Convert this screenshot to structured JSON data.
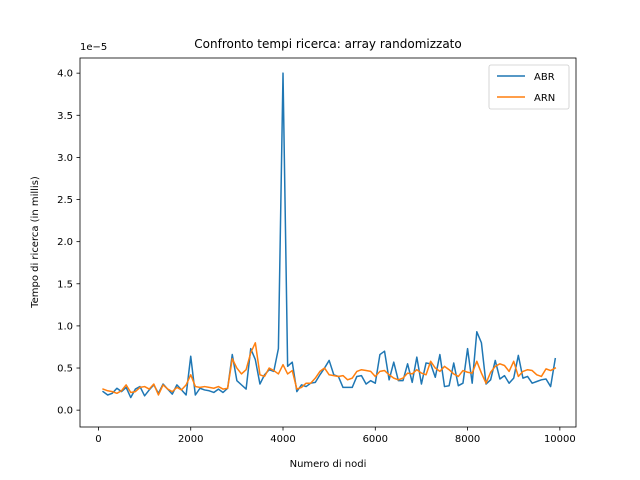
{
  "chart_data": {
    "type": "line",
    "title": "Confronto tempi ricerca: array randomizzato",
    "xlabel": "Numero di nodi",
    "ylabel": "Tempo di ricerca (in millis)",
    "y_offset_label": "1e−5",
    "xlim": [
      -400,
      10350
    ],
    "ylim": [
      -0.2,
      4.18
    ],
    "xticks": [
      0,
      2000,
      4000,
      6000,
      8000,
      10000
    ],
    "xtick_labels": [
      "0",
      "2000",
      "4000",
      "6000",
      "8000",
      "10000"
    ],
    "yticks": [
      0.0,
      0.5,
      1.0,
      1.5,
      2.0,
      2.5,
      3.0,
      3.5,
      4.0
    ],
    "ytick_labels": [
      "0.0",
      "0.5",
      "1.0",
      "1.5",
      "2.0",
      "2.5",
      "3.0",
      "3.5",
      "4.0"
    ],
    "grid": false,
    "legend_position": "top-right",
    "x": [
      100,
      200,
      300,
      400,
      500,
      600,
      700,
      800,
      900,
      1000,
      1100,
      1200,
      1300,
      1400,
      1500,
      1600,
      1700,
      1800,
      1900,
      2000,
      2100,
      2200,
      2300,
      2400,
      2500,
      2600,
      2700,
      2800,
      2900,
      3000,
      3100,
      3200,
      3300,
      3400,
      3500,
      3600,
      3700,
      3800,
      3900,
      4000,
      4100,
      4200,
      4300,
      4400,
      4500,
      4600,
      4700,
      4800,
      4900,
      5000,
      5100,
      5200,
      5300,
      5400,
      5500,
      5600,
      5700,
      5800,
      5900,
      6000,
      6100,
      6200,
      6300,
      6400,
      6500,
      6600,
      6700,
      6800,
      6900,
      7000,
      7100,
      7200,
      7300,
      7400,
      7500,
      7600,
      7700,
      7800,
      7900,
      8000,
      8100,
      8200,
      8300,
      8400,
      8500,
      8600,
      8700,
      8800,
      8900,
      9000,
      9100,
      9200,
      9300,
      9400,
      9500,
      9600,
      9700,
      9800,
      9900
    ],
    "series": [
      {
        "name": "ABR",
        "color": "#1f77b4",
        "values": [
          0.22,
          0.18,
          0.2,
          0.26,
          0.22,
          0.27,
          0.15,
          0.25,
          0.28,
          0.17,
          0.24,
          0.3,
          0.2,
          0.31,
          0.25,
          0.19,
          0.3,
          0.24,
          0.18,
          0.64,
          0.18,
          0.26,
          0.24,
          0.23,
          0.21,
          0.25,
          0.21,
          0.26,
          0.66,
          0.35,
          0.3,
          0.25,
          0.73,
          0.6,
          0.31,
          0.42,
          0.48,
          0.46,
          0.73,
          4.0,
          0.52,
          0.57,
          0.22,
          0.3,
          0.28,
          0.32,
          0.33,
          0.42,
          0.5,
          0.59,
          0.42,
          0.4,
          0.27,
          0.27,
          0.27,
          0.4,
          0.41,
          0.31,
          0.35,
          0.32,
          0.66,
          0.7,
          0.36,
          0.57,
          0.35,
          0.35,
          0.55,
          0.33,
          0.63,
          0.31,
          0.56,
          0.55,
          0.39,
          0.66,
          0.28,
          0.29,
          0.56,
          0.29,
          0.32,
          0.73,
          0.32,
          0.93,
          0.8,
          0.31,
          0.36,
          0.59,
          0.37,
          0.41,
          0.32,
          0.38,
          0.65,
          0.38,
          0.4,
          0.32,
          0.34,
          0.36,
          0.37,
          0.28,
          0.61
        ]
      },
      {
        "name": "ARN",
        "color": "#ff7f0e",
        "values": [
          0.25,
          0.23,
          0.22,
          0.2,
          0.23,
          0.3,
          0.21,
          0.22,
          0.27,
          0.28,
          0.25,
          0.31,
          0.18,
          0.3,
          0.25,
          0.22,
          0.27,
          0.24,
          0.3,
          0.42,
          0.28,
          0.27,
          0.28,
          0.27,
          0.26,
          0.28,
          0.25,
          0.26,
          0.61,
          0.5,
          0.43,
          0.48,
          0.68,
          0.8,
          0.42,
          0.4,
          0.5,
          0.47,
          0.43,
          0.54,
          0.43,
          0.47,
          0.25,
          0.27,
          0.32,
          0.32,
          0.38,
          0.46,
          0.5,
          0.42,
          0.41,
          0.4,
          0.41,
          0.36,
          0.38,
          0.46,
          0.48,
          0.47,
          0.46,
          0.4,
          0.46,
          0.47,
          0.42,
          0.38,
          0.36,
          0.38,
          0.44,
          0.43,
          0.48,
          0.44,
          0.42,
          0.58,
          0.5,
          0.46,
          0.52,
          0.48,
          0.43,
          0.4,
          0.47,
          0.45,
          0.44,
          0.58,
          0.44,
          0.32,
          0.45,
          0.52,
          0.55,
          0.53,
          0.46,
          0.58,
          0.4,
          0.46,
          0.48,
          0.47,
          0.42,
          0.4,
          0.49,
          0.47,
          0.5
        ]
      }
    ]
  }
}
